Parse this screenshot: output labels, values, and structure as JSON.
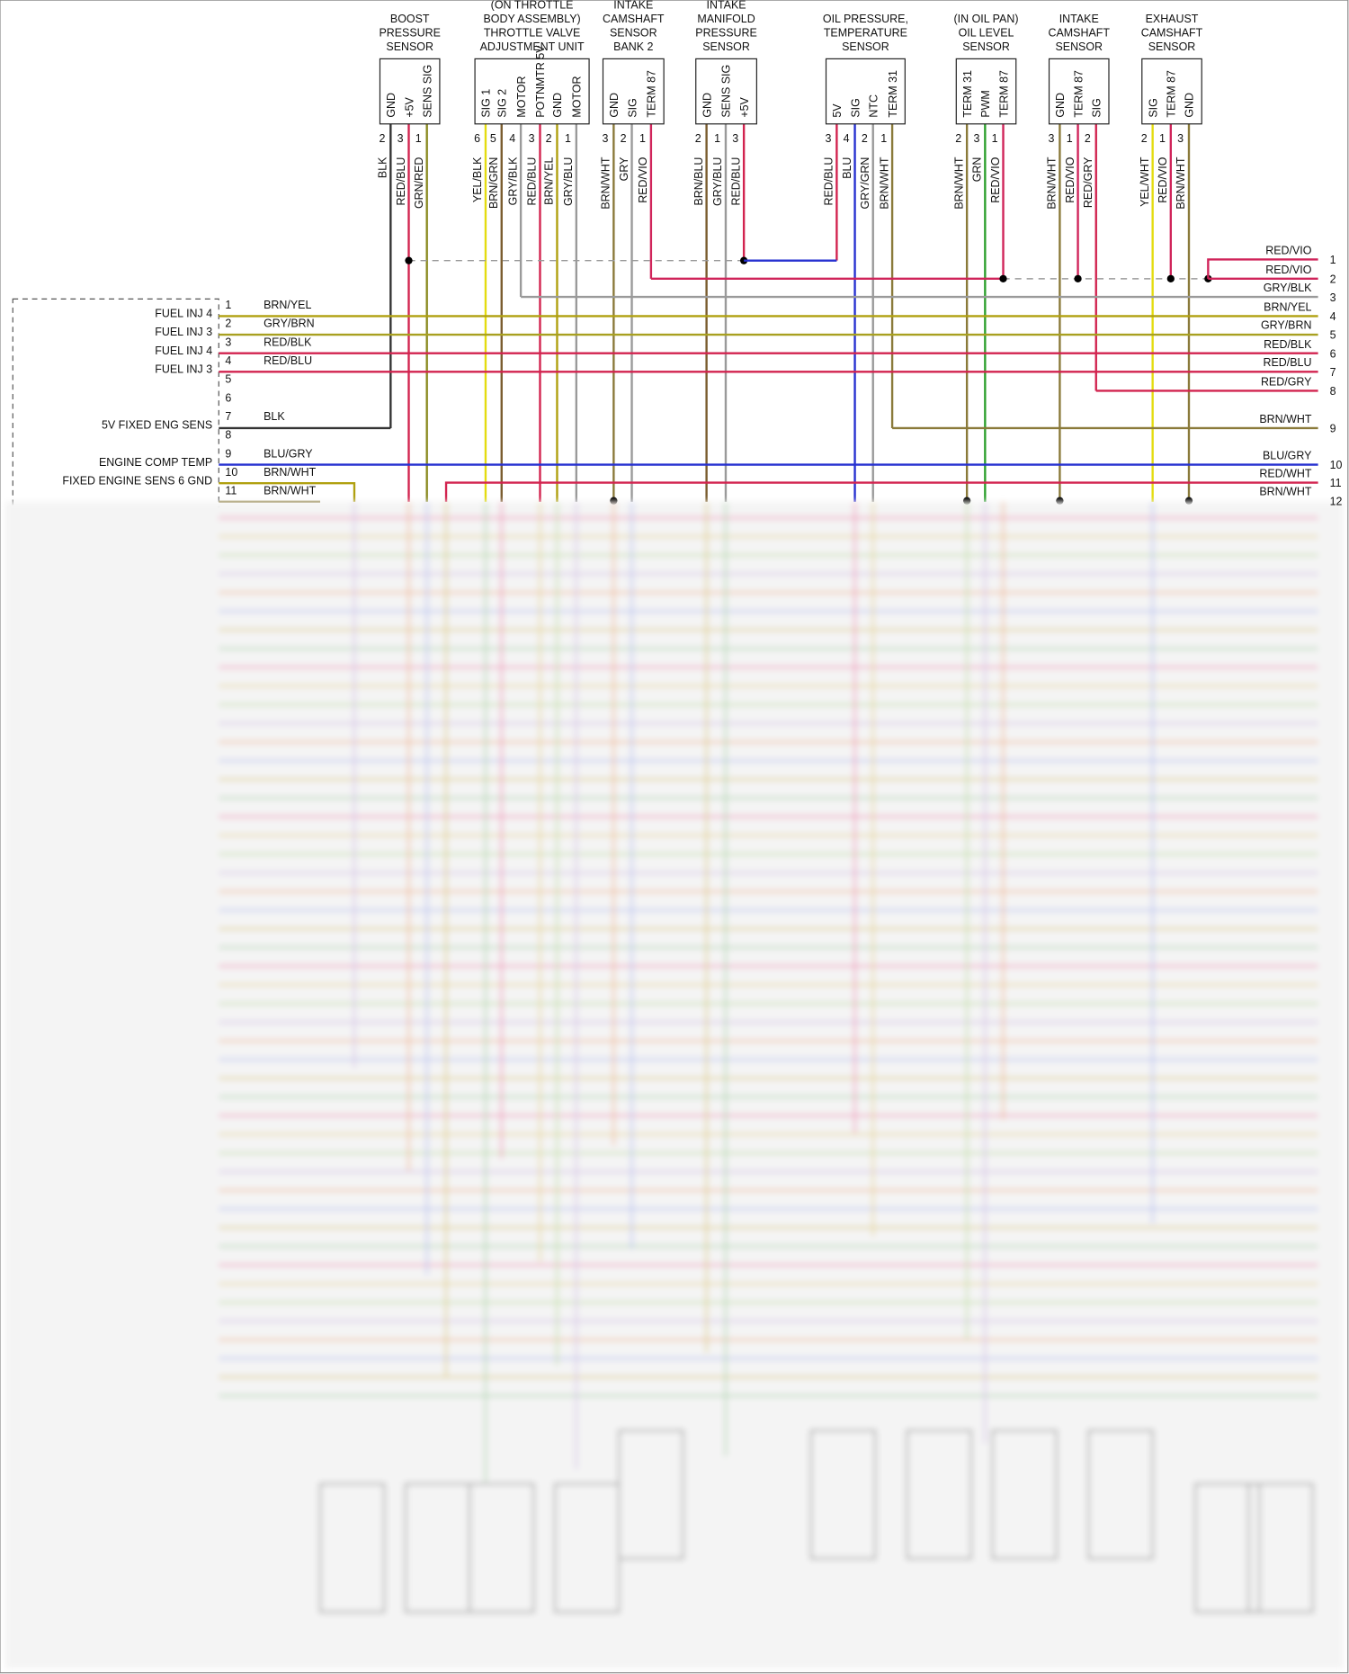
{
  "sensors": [
    {
      "title": [
        "BOOST",
        "PRESSURE",
        "SENSOR"
      ],
      "pins": [
        {
          "name": "GND",
          "number": 2,
          "wire": "BLK"
        },
        {
          "name": "+5V",
          "number": 3,
          "wire": "RED/BLU"
        },
        {
          "name": "SENS SIG",
          "number": 1,
          "wire": "GRN/RED"
        }
      ]
    },
    {
      "title": [
        "(ON THROTTLE",
        "BODY ASSEMBLY)",
        "THROTTLE VALVE",
        "ADJUSTMENT UNIT"
      ],
      "pins": [
        {
          "name": "SIG 1",
          "number": 6,
          "wire": "YEL/BLK"
        },
        {
          "name": "SIG 2",
          "number": 5,
          "wire": "BRN/GRN"
        },
        {
          "name": "MOTOR",
          "number": 4,
          "wire": "GRY/BLK"
        },
        {
          "name": "POTNMTR 5V",
          "number": 3,
          "wire": "RED/BLU"
        },
        {
          "name": "GND",
          "number": 2,
          "wire": "BRN/YEL"
        },
        {
          "name": "MOTOR",
          "number": 1,
          "wire": "GRY/BLU"
        }
      ]
    },
    {
      "title": [
        "INTAKE",
        "CAMSHAFT",
        "SENSOR",
        "BANK 2"
      ],
      "pins": [
        {
          "name": "GND",
          "number": 3,
          "wire": "BRN/WHT"
        },
        {
          "name": "SIG",
          "number": 2,
          "wire": "GRY"
        },
        {
          "name": "TERM 87",
          "number": 1,
          "wire": "RED/VIO"
        }
      ]
    },
    {
      "title": [
        "INTAKE",
        "MANIFOLD",
        "PRESSURE",
        "SENSOR"
      ],
      "pins": [
        {
          "name": "GND",
          "number": 2,
          "wire": "BRN/BLU"
        },
        {
          "name": "SENS SIG",
          "number": 1,
          "wire": "GRY/BLU"
        },
        {
          "name": "+5V",
          "number": 3,
          "wire": "RED/BLU"
        }
      ]
    },
    {
      "title": [
        "OIL PRESSURE,",
        "TEMPERATURE",
        "SENSOR"
      ],
      "pins": [
        {
          "name": "5V",
          "number": 3,
          "wire": "RED/BLU"
        },
        {
          "name": "SIG",
          "number": 4,
          "wire": "BLU"
        },
        {
          "name": "NTC",
          "number": 2,
          "wire": "GRY/GRN"
        },
        {
          "name": "TERM 31",
          "number": 1,
          "wire": "BRN/WHT"
        }
      ]
    },
    {
      "title": [
        "(IN OIL PAN)",
        "OIL LEVEL",
        "SENSOR"
      ],
      "pins": [
        {
          "name": "TERM 31",
          "number": 2,
          "wire": "BRN/WHT"
        },
        {
          "name": "PWM",
          "number": 3,
          "wire": "GRN"
        },
        {
          "name": "TERM 87",
          "number": 1,
          "wire": "RED/VIO"
        }
      ]
    },
    {
      "title": [
        "INTAKE",
        "CAMSHAFT",
        "SENSOR"
      ],
      "pins": [
        {
          "name": "GND",
          "number": 3,
          "wire": "BRN/WHT"
        },
        {
          "name": "TERM 87",
          "number": 1,
          "wire": "RED/VIO"
        },
        {
          "name": "SIG",
          "number": 2,
          "wire": "RED/GRY"
        }
      ]
    },
    {
      "title": [
        "EXHAUST",
        "CAMSHAFT",
        "SENSOR"
      ],
      "pins": [
        {
          "name": "SIG",
          "number": 2,
          "wire": "YEL/WHT"
        },
        {
          "name": "TERM 87",
          "number": 1,
          "wire": "RED/VIO"
        },
        {
          "name": "GND",
          "number": 3,
          "wire": "BRN/WHT"
        }
      ]
    }
  ],
  "ecu_left": {
    "pins": [
      {
        "number": 1,
        "label": "FUEL INJ 4",
        "wire": "BRN/YEL"
      },
      {
        "number": 2,
        "label": "FUEL INJ 3",
        "wire": "GRY/BRN"
      },
      {
        "number": 3,
        "label": "FUEL INJ 4",
        "wire": "RED/BLK"
      },
      {
        "number": 4,
        "label": "FUEL INJ 3",
        "wire": "RED/BLU"
      },
      {
        "number": 5
      },
      {
        "number": 6
      },
      {
        "number": 7,
        "label": "5V FIXED ENG SENS",
        "wire": "BLK"
      },
      {
        "number": 8
      },
      {
        "number": 9,
        "label": "ENGINE COMP TEMP",
        "wire": "BLU/GRY"
      },
      {
        "number": 10,
        "label": "FIXED ENGINE SENS 6 GND",
        "wire": "BRN/WHT"
      },
      {
        "number": 11,
        "wire": "BRN/WHT"
      }
    ]
  },
  "ecu_right": {
    "pins": [
      {
        "number": 1,
        "wire": "RED/VIO"
      },
      {
        "number": 2,
        "wire": "RED/VIO"
      },
      {
        "number": 3,
        "wire": "GRY/BLK"
      },
      {
        "number": 4,
        "wire": "BRN/YEL"
      },
      {
        "number": 5,
        "wire": "GRY/BRN"
      },
      {
        "number": 6,
        "wire": "RED/BLK"
      },
      {
        "number": 7,
        "wire": "RED/BLU"
      },
      {
        "number": 8,
        "wire": "RED/GRY"
      },
      {
        "number": 9,
        "wire": "BRN/WHT"
      },
      {
        "number": 10,
        "wire": "BLU/GRY"
      },
      {
        "number": 11,
        "wire": "RED/WHT"
      },
      {
        "number": 12,
        "wire": "BRN/WHT"
      }
    ]
  }
}
